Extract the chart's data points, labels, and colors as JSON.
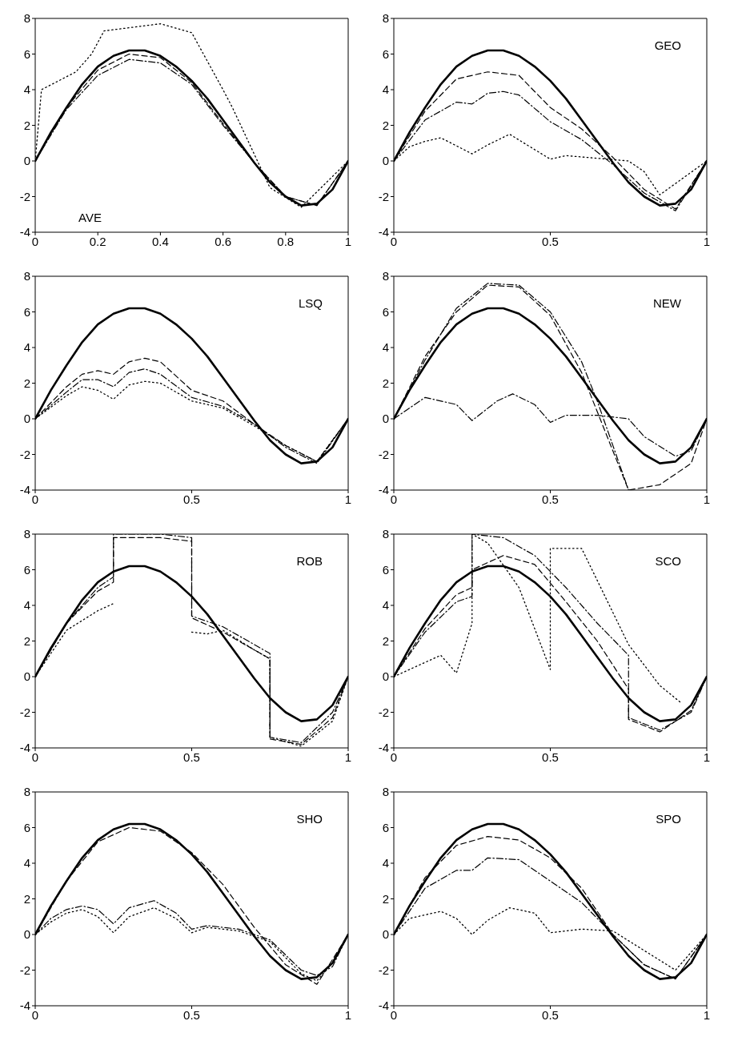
{
  "chart_data": [
    {
      "type": "line",
      "annotations": [
        "AVE"
      ],
      "xlim": [
        0,
        1
      ],
      "ylim": [
        -4,
        8
      ],
      "xticks": [
        0,
        0.2,
        0.4,
        0.6,
        0.8,
        1
      ],
      "yticks": [
        -4,
        -2,
        0,
        2,
        4,
        6,
        8
      ],
      "marker": "none",
      "series": [
        {
          "color": "#000000",
          "line_style": "solid",
          "x": [
            0,
            0.05,
            0.1,
            0.15,
            0.2,
            0.25,
            0.3,
            0.35,
            0.4,
            0.45,
            0.5,
            0.55,
            0.6,
            0.65,
            0.7,
            0.75,
            0.8,
            0.85,
            0.9,
            0.95,
            1
          ],
          "values": [
            0,
            1.6,
            3.0,
            4.3,
            5.3,
            5.9,
            6.2,
            6.2,
            5.9,
            5.3,
            4.5,
            3.5,
            2.3,
            1.1,
            -0.1,
            -1.2,
            -2.0,
            -2.5,
            -2.4,
            -1.6,
            0
          ]
        },
        {
          "color": "#000000",
          "line_style": "dashed",
          "x": [
            0,
            0.1,
            0.2,
            0.3,
            0.4,
            0.5,
            0.6,
            0.7,
            0.8,
            0.9,
            1
          ],
          "values": [
            0,
            3.0,
            5.1,
            6.0,
            5.8,
            4.4,
            2.1,
            -0.1,
            -2.0,
            -2.5,
            0
          ]
        },
        {
          "color": "#000000",
          "line_style": "dashdot",
          "x": [
            0,
            0.1,
            0.2,
            0.3,
            0.4,
            0.5,
            0.6,
            0.7,
            0.8,
            0.9,
            1
          ],
          "values": [
            0,
            2.9,
            4.8,
            5.7,
            5.5,
            4.3,
            2.0,
            -0.1,
            -2.0,
            -2.5,
            0
          ]
        },
        {
          "color": "#000000",
          "line_style": "dotted",
          "x": [
            0,
            0.02,
            0.13,
            0.18,
            0.22,
            0.4,
            0.5,
            0.6,
            0.63,
            0.75,
            0.85,
            1
          ],
          "values": [
            0,
            4.0,
            5.0,
            6.0,
            7.3,
            7.7,
            7.2,
            4.0,
            3.0,
            -1.5,
            -2.6,
            0
          ]
        }
      ]
    },
    {
      "type": "line",
      "annotations": [
        "GEO"
      ],
      "xlim": [
        0,
        1
      ],
      "ylim": [
        -4,
        8
      ],
      "xticks": [
        0,
        0.5,
        1
      ],
      "yticks": [
        -4,
        -2,
        0,
        2,
        4,
        6,
        8
      ],
      "marker": "none",
      "series": [
        {
          "color": "#000000",
          "line_style": "solid",
          "x": [
            0,
            0.05,
            0.1,
            0.15,
            0.2,
            0.25,
            0.3,
            0.35,
            0.4,
            0.45,
            0.5,
            0.55,
            0.6,
            0.65,
            0.7,
            0.75,
            0.8,
            0.85,
            0.9,
            0.95,
            1
          ],
          "values": [
            0,
            1.6,
            3.0,
            4.3,
            5.3,
            5.9,
            6.2,
            6.2,
            5.9,
            5.3,
            4.5,
            3.5,
            2.3,
            1.1,
            -0.1,
            -1.2,
            -2.0,
            -2.5,
            -2.4,
            -1.6,
            0
          ]
        },
        {
          "color": "#000000",
          "line_style": "dashed",
          "x": [
            0,
            0.1,
            0.2,
            0.3,
            0.4,
            0.5,
            0.6,
            0.7,
            0.8,
            0.9,
            1
          ],
          "values": [
            0,
            2.8,
            4.6,
            5.0,
            4.8,
            3.0,
            1.8,
            0.2,
            -1.6,
            -2.7,
            0
          ]
        },
        {
          "color": "#000000",
          "line_style": "dashdot",
          "x": [
            0,
            0.1,
            0.2,
            0.25,
            0.3,
            0.35,
            0.4,
            0.5,
            0.6,
            0.7,
            0.8,
            0.9,
            1
          ],
          "values": [
            0,
            2.3,
            3.3,
            3.2,
            3.8,
            3.9,
            3.7,
            2.2,
            1.2,
            -0.2,
            -1.8,
            -2.8,
            0
          ]
        },
        {
          "color": "#000000",
          "line_style": "dotted",
          "x": [
            0,
            0.05,
            0.1,
            0.15,
            0.25,
            0.3,
            0.37,
            0.5,
            0.55,
            0.75,
            0.8,
            0.85,
            1
          ],
          "values": [
            0,
            0.8,
            1.1,
            1.3,
            0.4,
            0.9,
            1.5,
            0.1,
            0.3,
            0,
            -0.6,
            -1.9,
            0
          ]
        }
      ]
    },
    {
      "type": "line",
      "annotations": [
        "LSQ"
      ],
      "xlim": [
        0,
        1
      ],
      "ylim": [
        -4,
        8
      ],
      "xticks": [
        0,
        0.5,
        1
      ],
      "yticks": [
        -4,
        -2,
        0,
        2,
        4,
        6,
        8
      ],
      "marker": "none",
      "series": [
        {
          "color": "#000000",
          "line_style": "solid",
          "x": [
            0,
            0.05,
            0.1,
            0.15,
            0.2,
            0.25,
            0.3,
            0.35,
            0.4,
            0.45,
            0.5,
            0.55,
            0.6,
            0.65,
            0.7,
            0.75,
            0.8,
            0.85,
            0.9,
            0.95,
            1
          ],
          "values": [
            0,
            1.6,
            3.0,
            4.3,
            5.3,
            5.9,
            6.2,
            6.2,
            5.9,
            5.3,
            4.5,
            3.5,
            2.3,
            1.1,
            -0.1,
            -1.2,
            -2.0,
            -2.5,
            -2.4,
            -1.6,
            0
          ]
        },
        {
          "color": "#000000",
          "line_style": "dashed",
          "x": [
            0,
            0.1,
            0.15,
            0.2,
            0.25,
            0.3,
            0.35,
            0.4,
            0.5,
            0.6,
            0.7,
            0.8,
            0.9,
            1
          ],
          "values": [
            0,
            1.8,
            2.5,
            2.7,
            2.5,
            3.2,
            3.4,
            3.2,
            1.6,
            1.0,
            -0.3,
            -1.5,
            -2.4,
            0
          ]
        },
        {
          "color": "#000000",
          "line_style": "dashdot",
          "x": [
            0,
            0.1,
            0.15,
            0.2,
            0.25,
            0.3,
            0.35,
            0.4,
            0.5,
            0.6,
            0.7,
            0.8,
            0.9,
            1
          ],
          "values": [
            0,
            1.5,
            2.2,
            2.2,
            1.8,
            2.6,
            2.8,
            2.5,
            1.2,
            0.7,
            -0.3,
            -1.6,
            -2.5,
            0
          ]
        },
        {
          "color": "#000000",
          "line_style": "dotted",
          "x": [
            0,
            0.1,
            0.15,
            0.2,
            0.25,
            0.3,
            0.35,
            0.4,
            0.5,
            0.6,
            0.7,
            0.8,
            0.9,
            1
          ],
          "values": [
            0,
            1.3,
            1.8,
            1.6,
            1.1,
            1.9,
            2.1,
            2.0,
            1.0,
            0.6,
            -0.4,
            -1.5,
            -2.4,
            0
          ]
        }
      ]
    },
    {
      "type": "line",
      "annotations": [
        "NEW"
      ],
      "xlim": [
        0,
        1
      ],
      "ylim": [
        -4,
        8
      ],
      "xticks": [
        0,
        0.5,
        1
      ],
      "yticks": [
        -4,
        -2,
        0,
        2,
        4,
        6,
        8
      ],
      "marker": "none",
      "series": [
        {
          "color": "#000000",
          "line_style": "solid",
          "x": [
            0,
            0.05,
            0.1,
            0.15,
            0.2,
            0.25,
            0.3,
            0.35,
            0.4,
            0.45,
            0.5,
            0.55,
            0.6,
            0.65,
            0.7,
            0.75,
            0.8,
            0.85,
            0.9,
            0.95,
            1
          ],
          "values": [
            0,
            1.6,
            3.0,
            4.3,
            5.3,
            5.9,
            6.2,
            6.2,
            5.9,
            5.3,
            4.5,
            3.5,
            2.3,
            1.1,
            -0.1,
            -1.2,
            -2.0,
            -2.5,
            -2.4,
            -1.6,
            0
          ]
        },
        {
          "color": "#000000",
          "line_style": "dashed",
          "x": [
            0,
            0.1,
            0.2,
            0.3,
            0.4,
            0.5,
            0.6,
            0.7,
            0.75,
            0.85,
            0.95,
            1
          ],
          "values": [
            0,
            3.5,
            6.0,
            7.5,
            7.4,
            5.8,
            2.6,
            -1.8,
            -4,
            -3.7,
            -2.5,
            0
          ]
        },
        {
          "color": "#000000",
          "line_style": "dashdot",
          "x": [
            0,
            0.1,
            0.2,
            0.3,
            0.4,
            0.5,
            0.6,
            0.65,
            0.7,
            0.75
          ],
          "values": [
            0,
            3.3,
            6.2,
            7.6,
            7.5,
            6.0,
            3.2,
            1.0,
            -1.5,
            -4
          ]
        },
        {
          "color": "#000000",
          "line_style": "dashdot",
          "x": [
            0,
            0.1,
            0.2,
            0.25,
            0.33,
            0.38,
            0.45,
            0.5,
            0.55,
            0.65,
            0.75,
            0.8,
            0.9,
            0.95,
            1
          ],
          "values": [
            0,
            1.2,
            0.8,
            -0.1,
            1.0,
            1.4,
            0.8,
            -0.2,
            0.2,
            0.2,
            0.0,
            -1.0,
            -2.1,
            -1.8,
            0
          ]
        }
      ]
    },
    {
      "type": "line",
      "annotations": [
        "ROB"
      ],
      "xlim": [
        0,
        1
      ],
      "ylim": [
        -4,
        8
      ],
      "xticks": [
        0,
        0.5,
        1
      ],
      "yticks": [
        -4,
        -2,
        0,
        2,
        4,
        6,
        8
      ],
      "marker": "none",
      "series": [
        {
          "color": "#000000",
          "line_style": "solid",
          "x": [
            0,
            0.05,
            0.1,
            0.15,
            0.2,
            0.25,
            0.3,
            0.35,
            0.4,
            0.45,
            0.5,
            0.55,
            0.6,
            0.65,
            0.7,
            0.75,
            0.8,
            0.85,
            0.9,
            0.95,
            1
          ],
          "values": [
            0,
            1.6,
            3.0,
            4.3,
            5.3,
            5.9,
            6.2,
            6.2,
            5.9,
            5.3,
            4.5,
            3.5,
            2.3,
            1.1,
            -0.1,
            -1.2,
            -2.0,
            -2.5,
            -2.4,
            -1.6,
            0
          ]
        },
        {
          "color": "#000000",
          "line_style": "dashed",
          "x": [
            0,
            0.1,
            0.2,
            0.25,
            0.25,
            0.3,
            0.4,
            0.5,
            0.5,
            0.6,
            0.7,
            0.75,
            0.75,
            0.85,
            0.95,
            1
          ],
          "values": [
            0,
            3.0,
            4.8,
            5.3,
            7.8,
            7.8,
            7.8,
            7.6,
            3.3,
            2.5,
            1.5,
            1.0,
            -3.5,
            -3.8,
            -2.3,
            0
          ]
        },
        {
          "color": "#000000",
          "line_style": "dashdot",
          "x": [
            0,
            0.1,
            0.2,
            0.25,
            0.25,
            0.3,
            0.4,
            0.5,
            0.5,
            0.6,
            0.7,
            0.75,
            0.75,
            0.85,
            0.95,
            1
          ],
          "values": [
            0,
            3.0,
            5.0,
            5.6,
            8,
            8,
            8,
            7.8,
            3.4,
            2.8,
            1.8,
            1.3,
            -3.4,
            -3.7,
            -2.0,
            0
          ]
        },
        {
          "color": "#000000",
          "line_style": "dotted",
          "x": [
            0,
            0.1,
            0.2,
            0.25,
            0.3,
            0.5,
            0.55,
            0.6,
            0.7,
            0.75,
            0.75,
            0.85,
            0.95,
            1
          ],
          "values": [
            0,
            2.6,
            3.7,
            4.1,
            null,
            2.5,
            2.4,
            2.6,
            1.5,
            1.0,
            -3.4,
            -3.9,
            -2.5,
            0
          ]
        }
      ]
    },
    {
      "type": "line",
      "annotations": [
        "SCO"
      ],
      "xlim": [
        0,
        1
      ],
      "ylim": [
        -4,
        8
      ],
      "xticks": [
        0,
        0.5,
        1
      ],
      "yticks": [
        -4,
        -2,
        0,
        2,
        4,
        6,
        8
      ],
      "marker": "none",
      "series": [
        {
          "color": "#000000",
          "line_style": "solid",
          "x": [
            0,
            0.05,
            0.1,
            0.15,
            0.2,
            0.25,
            0.3,
            0.35,
            0.4,
            0.45,
            0.5,
            0.55,
            0.6,
            0.65,
            0.7,
            0.75,
            0.8,
            0.85,
            0.9,
            0.95,
            1
          ],
          "values": [
            0,
            1.6,
            3.0,
            4.3,
            5.3,
            5.9,
            6.2,
            6.2,
            5.9,
            5.3,
            4.5,
            3.5,
            2.3,
            1.1,
            -0.1,
            -1.2,
            -2.0,
            -2.5,
            -2.4,
            -1.6,
            0
          ]
        },
        {
          "color": "#000000",
          "line_style": "dashed",
          "x": [
            0,
            0.1,
            0.2,
            0.25,
            0.25,
            0.35,
            0.45,
            0.55,
            0.65,
            0.75,
            0.75,
            0.85,
            0.95,
            1
          ],
          "values": [
            0,
            2.7,
            4.6,
            5.0,
            6.0,
            6.8,
            6.3,
            4.2,
            2.0,
            -0.7,
            -2.4,
            -3.1,
            -1.9,
            0
          ]
        },
        {
          "color": "#000000",
          "line_style": "dashdot",
          "x": [
            0,
            0.1,
            0.2,
            0.25,
            0.25,
            0.35,
            0.45,
            0.55,
            0.65,
            0.75,
            0.75,
            0.85,
            0.95,
            1
          ],
          "values": [
            0,
            2.5,
            4.2,
            4.5,
            8,
            7.8,
            6.8,
            5.0,
            3.0,
            1.2,
            -2.3,
            -3.0,
            -2.0,
            0
          ]
        },
        {
          "color": "#000000",
          "line_style": "dotted",
          "x": [
            0,
            0.15,
            0.2,
            0.25,
            0.25,
            0.3,
            0.4,
            0.5,
            0.5,
            0.6,
            0.75,
            0.85,
            0.92
          ],
          "values": [
            0,
            1.2,
            0.2,
            3.0,
            8,
            7.5,
            5.0,
            0.4,
            7.2,
            7.2,
            1.8,
            -0.5,
            -1.5
          ]
        }
      ]
    },
    {
      "type": "line",
      "annotations": [
        "SHO"
      ],
      "xlim": [
        0,
        1
      ],
      "ylim": [
        -4,
        8
      ],
      "xticks": [
        0,
        0.5,
        1
      ],
      "yticks": [
        -4,
        -2,
        0,
        2,
        4,
        6,
        8
      ],
      "marker": "none",
      "series": [
        {
          "color": "#000000",
          "line_style": "solid",
          "x": [
            0,
            0.05,
            0.1,
            0.15,
            0.2,
            0.25,
            0.3,
            0.35,
            0.4,
            0.45,
            0.5,
            0.55,
            0.6,
            0.65,
            0.7,
            0.75,
            0.8,
            0.85,
            0.9,
            0.95,
            1
          ],
          "values": [
            0,
            1.6,
            3.0,
            4.3,
            5.3,
            5.9,
            6.2,
            6.2,
            5.9,
            5.3,
            4.5,
            3.5,
            2.3,
            1.1,
            -0.1,
            -1.2,
            -2.0,
            -2.5,
            -2.4,
            -1.6,
            0
          ]
        },
        {
          "color": "#000000",
          "line_style": "dashed",
          "x": [
            0,
            0.1,
            0.2,
            0.3,
            0.4,
            0.5,
            0.6,
            0.7,
            0.8,
            0.9,
            1
          ],
          "values": [
            0,
            3.0,
            5.2,
            6.0,
            5.8,
            4.6,
            2.8,
            0.4,
            -1.7,
            -2.8,
            0
          ]
        },
        {
          "color": "#000000",
          "line_style": "dashdot",
          "x": [
            0,
            0.05,
            0.1,
            0.15,
            0.2,
            0.25,
            0.3,
            0.38,
            0.45,
            0.5,
            0.55,
            0.65,
            0.75,
            0.85,
            0.9,
            0.95,
            1
          ],
          "values": [
            0,
            0.9,
            1.4,
            1.6,
            1.4,
            0.6,
            1.5,
            1.9,
            1.2,
            0.3,
            0.5,
            0.3,
            -0.3,
            -2.0,
            -2.3,
            -1.8,
            0
          ]
        },
        {
          "color": "#000000",
          "line_style": "dotted",
          "x": [
            0,
            0.05,
            0.1,
            0.15,
            0.2,
            0.25,
            0.3,
            0.38,
            0.45,
            0.5,
            0.55,
            0.65,
            0.75,
            0.85,
            0.9,
            0.95,
            1
          ],
          "values": [
            0,
            0.7,
            1.2,
            1.4,
            1.0,
            0.1,
            1.0,
            1.5,
            0.9,
            0.1,
            0.4,
            0.2,
            -0.4,
            -2.2,
            -2.6,
            -1.6,
            0
          ]
        }
      ]
    },
    {
      "type": "line",
      "annotations": [
        "SPO"
      ],
      "xlim": [
        0,
        1
      ],
      "ylim": [
        -4,
        8
      ],
      "xticks": [
        0,
        0.5,
        1
      ],
      "yticks": [
        -4,
        -2,
        0,
        2,
        4,
        6,
        8
      ],
      "marker": "none",
      "series": [
        {
          "color": "#000000",
          "line_style": "solid",
          "x": [
            0,
            0.05,
            0.1,
            0.15,
            0.2,
            0.25,
            0.3,
            0.35,
            0.4,
            0.45,
            0.5,
            0.55,
            0.6,
            0.65,
            0.7,
            0.75,
            0.8,
            0.85,
            0.9,
            0.95,
            1
          ],
          "values": [
            0,
            1.6,
            3.0,
            4.3,
            5.3,
            5.9,
            6.2,
            6.2,
            5.9,
            5.3,
            4.5,
            3.5,
            2.3,
            1.1,
            -0.1,
            -1.2,
            -2.0,
            -2.5,
            -2.4,
            -1.6,
            0
          ]
        },
        {
          "color": "#000000",
          "line_style": "dashed",
          "x": [
            0,
            0.1,
            0.2,
            0.3,
            0.4,
            0.5,
            0.6,
            0.7,
            0.8,
            0.9,
            1
          ],
          "values": [
            0,
            3.2,
            5.0,
            5.5,
            5.3,
            4.3,
            2.6,
            0,
            -1.7,
            -2.5,
            0
          ]
        },
        {
          "color": "#000000",
          "line_style": "dashdot",
          "x": [
            0,
            0.1,
            0.2,
            0.25,
            0.3,
            0.4,
            0.5,
            0.6,
            0.7,
            0.8,
            0.9,
            1
          ],
          "values": [
            0,
            2.6,
            3.6,
            3.6,
            4.3,
            4.2,
            3.0,
            1.8,
            0,
            -1.7,
            -2.5,
            0
          ]
        },
        {
          "color": "#000000",
          "line_style": "dotted",
          "x": [
            0,
            0.05,
            0.15,
            0.2,
            0.25,
            0.3,
            0.37,
            0.45,
            0.5,
            0.6,
            0.7,
            0.8,
            0.9,
            1
          ],
          "values": [
            0,
            0.9,
            1.3,
            0.9,
            0,
            0.8,
            1.5,
            1.2,
            0.1,
            0.3,
            0.2,
            -0.9,
            -2.0,
            0
          ]
        }
      ]
    }
  ]
}
